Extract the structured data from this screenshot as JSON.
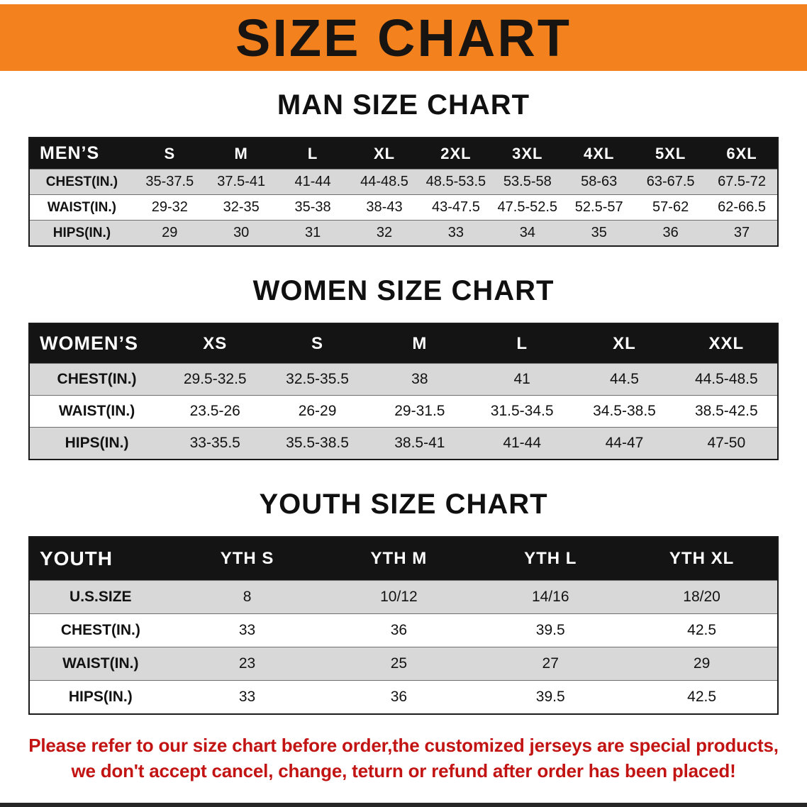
{
  "banner": {
    "title": "SIZE CHART"
  },
  "colors": {
    "banner_bg": "#f2811e",
    "header_bg": "#141414",
    "row_alt": "#d8d8d8",
    "notice_red": "#c31414"
  },
  "sections": [
    {
      "heading": "MAN SIZE CHART",
      "table": {
        "corner": "MEN’S",
        "columns": [
          "S",
          "M",
          "L",
          "XL",
          "2XL",
          "3XL",
          "4XL",
          "5XL",
          "6XL"
        ],
        "rows": [
          {
            "label": "CHEST(IN.)",
            "values": [
              "35-37.5",
              "37.5-41",
              "41-44",
              "44-48.5",
              "48.5-53.5",
              "53.5-58",
              "58-63",
              "63-67.5",
              "67.5-72"
            ]
          },
          {
            "label": "WAIST(IN.)",
            "values": [
              "29-32",
              "32-35",
              "35-38",
              "38-43",
              "43-47.5",
              "47.5-52.5",
              "52.5-57",
              "57-62",
              "62-66.5"
            ]
          },
          {
            "label": "HIPS(IN.)",
            "values": [
              "29",
              "30",
              "31",
              "32",
              "33",
              "34",
              "35",
              "36",
              "37"
            ]
          }
        ]
      }
    },
    {
      "heading": "WOMEN SIZE CHART",
      "table": {
        "corner": "WOMEN’S",
        "columns": [
          "XS",
          "S",
          "M",
          "L",
          "XL",
          "XXL"
        ],
        "rows": [
          {
            "label": "CHEST(IN.)",
            "values": [
              "29.5-32.5",
              "32.5-35.5",
              "38",
              "41",
              "44.5",
              "44.5-48.5"
            ]
          },
          {
            "label": "WAIST(IN.)",
            "values": [
              "23.5-26",
              "26-29",
              "29-31.5",
              "31.5-34.5",
              "34.5-38.5",
              "38.5-42.5"
            ]
          },
          {
            "label": "HIPS(IN.)",
            "values": [
              "33-35.5",
              "35.5-38.5",
              "38.5-41",
              "41-44",
              "44-47",
              "47-50"
            ]
          }
        ]
      }
    },
    {
      "heading": "YOUTH SIZE CHART",
      "table": {
        "corner": "YOUTH",
        "columns": [
          "YTH S",
          "YTH M",
          "YTH L",
          "YTH XL"
        ],
        "rows": [
          {
            "label": "U.S.SIZE",
            "values": [
              "8",
              "10/12",
              "14/16",
              "18/20"
            ]
          },
          {
            "label": "CHEST(IN.)",
            "values": [
              "33",
              "36",
              "39.5",
              "42.5"
            ]
          },
          {
            "label": "WAIST(IN.)",
            "values": [
              "23",
              "25",
              "27",
              "29"
            ]
          },
          {
            "label": "HIPS(IN.)",
            "values": [
              "33",
              "36",
              "39.5",
              "42.5"
            ]
          }
        ]
      }
    }
  ],
  "footer": {
    "line1": "Please refer to our size chart before order,the customized jerseys are special products,",
    "line2": "we don't accept cancel, change, teturn or refund after order has been placed!"
  }
}
